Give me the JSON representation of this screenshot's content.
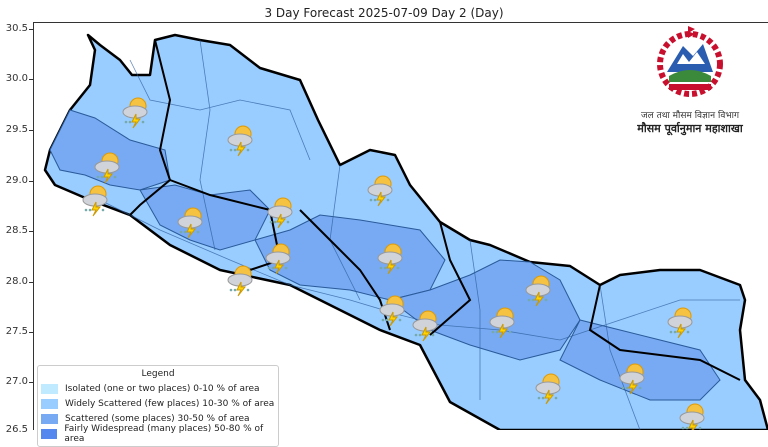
{
  "title": "3 Day Forecast 2025-07-09 Day 2 (Day)",
  "y_axis": {
    "ticks": [
      "30.5",
      "30.0",
      "29.5",
      "29.0",
      "28.5",
      "28.0",
      "27.5",
      "27.0",
      "26.5"
    ]
  },
  "logo": {
    "line1": "जल तथा मौसम विज्ञान विभाग",
    "line2": "मौसम पूर्वानुमान महाशाखा"
  },
  "legend": {
    "title": "Legend",
    "items": [
      {
        "label": "Isolated (one or two places)  0-10 % of area",
        "color": "#bfeaff"
      },
      {
        "label": "Widely Scattered (few places) 10-30 % of area",
        "color": "#99ccff"
      },
      {
        "label": "Scattered (some places) 30-50  % of area",
        "color": "#77aaf2"
      },
      {
        "label": "Fairly Widespread (many places) 50-80 % of area",
        "color": "#5588ee"
      }
    ]
  },
  "map": {
    "icon": "thunderstorm-rain-icon",
    "colors": {
      "light": "#99ccff",
      "medium": "#77aaf2",
      "border": "#000000"
    }
  }
}
